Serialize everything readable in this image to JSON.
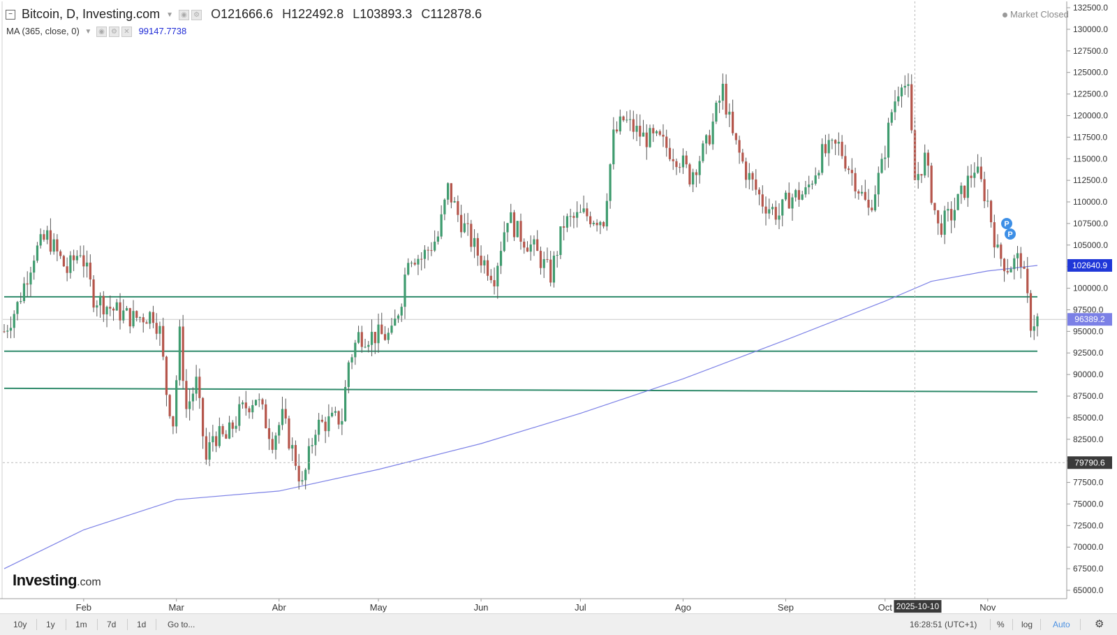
{
  "header": {
    "title": "Bitcoin, D, Investing.com",
    "open_label": "O",
    "open": "121666.6",
    "high_label": "H",
    "high": "122492.8",
    "low_label": "L",
    "low": "103893.3",
    "close_label": "C",
    "close": "112878.6"
  },
  "indicator": {
    "label": "MA (365, close, 0)",
    "value": "99147.7738"
  },
  "status": {
    "market": "Market Closed"
  },
  "logo": {
    "name": "Investing",
    "domain": ".com"
  },
  "crosshair": {
    "date_label": "2025-10-10",
    "price_label": "79790.6"
  },
  "price_tags": {
    "ma": "102640.9",
    "last": "96389.2",
    "crosshair": "79790.6"
  },
  "markers": [
    "P",
    "P"
  ],
  "bottom_bar": {
    "ranges": [
      "10y",
      "1y",
      "1m",
      "7d",
      "1d"
    ],
    "goto": "Go to...",
    "clock": "16:28:51 (UTC+1)",
    "percent": "%",
    "log": "log",
    "auto": "Auto"
  },
  "colors": {
    "up": "#3e9b6e",
    "down": "#b5554b",
    "ma_line": "#7b80e6",
    "support_line": "#2e8a6a",
    "ma_tag": "#1f37d8",
    "last_tag": "#7b80e6",
    "cross_tag": "#3a3a3a"
  },
  "chart_data": {
    "type": "candlestick",
    "y_axis": {
      "min": 65000,
      "max": 132500,
      "step": 2500,
      "tick_labels": [
        "65000.0",
        "67500.0",
        "70000.0",
        "72500.0",
        "75000.0",
        "77500.0",
        "80000.0",
        "82500.0",
        "85000.0",
        "87500.0",
        "90000.0",
        "92500.0",
        "95000.0",
        "97500.0",
        "100000.0",
        "102500.0",
        "105000.0",
        "107500.0",
        "110000.0",
        "112500.0",
        "115000.0",
        "117500.0",
        "120000.0",
        "122500.0",
        "125000.0",
        "127500.0",
        "130000.0",
        "132500.0"
      ]
    },
    "x_axis": {
      "start_date": "2025-01-08",
      "end_date": "2025-11-16",
      "month_labels": [
        {
          "label": "Feb",
          "date": "2025-02-01"
        },
        {
          "label": "Mar",
          "date": "2025-03-01"
        },
        {
          "label": "Abr",
          "date": "2025-04-01"
        },
        {
          "label": "May",
          "date": "2025-05-01"
        },
        {
          "label": "Jun",
          "date": "2025-06-01"
        },
        {
          "label": "Jul",
          "date": "2025-07-01"
        },
        {
          "label": "Ago",
          "date": "2025-08-01"
        },
        {
          "label": "Sep",
          "date": "2025-09-01"
        },
        {
          "label": "Oct",
          "date": "2025-10-01"
        },
        {
          "label": "Nov",
          "date": "2025-11-01"
        }
      ]
    },
    "price_path": [
      [
        "2025-01-08",
        95000
      ],
      [
        "2025-01-12",
        98000
      ],
      [
        "2025-01-17",
        104000
      ],
      [
        "2025-01-21",
        106000
      ],
      [
        "2025-01-27",
        102000
      ],
      [
        "2025-01-31",
        104500
      ],
      [
        "2025-02-04",
        99000
      ],
      [
        "2025-02-10",
        97500
      ],
      [
        "2025-02-16",
        96500
      ],
      [
        "2025-02-22",
        97000
      ],
      [
        "2025-02-24",
        95000
      ],
      [
        "2025-02-26",
        88000
      ],
      [
        "2025-02-28",
        84500
      ],
      [
        "2025-03-02",
        94500
      ],
      [
        "2025-03-04",
        86000
      ],
      [
        "2025-03-07",
        89000
      ],
      [
        "2025-03-10",
        80000
      ],
      [
        "2025-03-12",
        83000
      ],
      [
        "2025-03-16",
        82500
      ],
      [
        "2025-03-20",
        85500
      ],
      [
        "2025-03-25",
        87500
      ],
      [
        "2025-03-30",
        82500
      ],
      [
        "2025-04-02",
        85000
      ],
      [
        "2025-04-06",
        80000
      ],
      [
        "2025-04-08",
        77000
      ],
      [
        "2025-04-12",
        84000
      ],
      [
        "2025-04-16",
        84500
      ],
      [
        "2025-04-20",
        85000
      ],
      [
        "2025-04-22",
        91500
      ],
      [
        "2025-04-25",
        94500
      ],
      [
        "2025-04-30",
        94500
      ],
      [
        "2025-05-05",
        94500
      ],
      [
        "2025-05-08",
        99000
      ],
      [
        "2025-05-10",
        104000
      ],
      [
        "2025-05-14",
        103500
      ],
      [
        "2025-05-19",
        106000
      ],
      [
        "2025-05-22",
        111500
      ],
      [
        "2025-05-25",
        108500
      ],
      [
        "2025-05-31",
        104000
      ],
      [
        "2025-06-05",
        101500
      ],
      [
        "2025-06-09",
        108500
      ],
      [
        "2025-06-12",
        106500
      ],
      [
        "2025-06-17",
        104500
      ],
      [
        "2025-06-22",
        101500
      ],
      [
        "2025-06-26",
        107500
      ],
      [
        "2025-07-02",
        108500
      ],
      [
        "2025-07-08",
        108000
      ],
      [
        "2025-07-11",
        117500
      ],
      [
        "2025-07-14",
        119500
      ],
      [
        "2025-07-20",
        117500
      ],
      [
        "2025-07-25",
        117000
      ],
      [
        "2025-07-31",
        115000
      ],
      [
        "2025-08-03",
        113000
      ],
      [
        "2025-08-08",
        116500
      ],
      [
        "2025-08-13",
        123000
      ],
      [
        "2025-08-16",
        117500
      ],
      [
        "2025-08-20",
        113500
      ],
      [
        "2025-08-25",
        110000
      ],
      [
        "2025-08-30",
        108500
      ],
      [
        "2025-09-02",
        110500
      ],
      [
        "2025-09-07",
        111000
      ],
      [
        "2025-09-12",
        115500
      ],
      [
        "2025-09-17",
        116500
      ],
      [
        "2025-09-22",
        112500
      ],
      [
        "2025-09-26",
        109000
      ],
      [
        "2025-09-30",
        114000
      ],
      [
        "2025-10-03",
        120500
      ],
      [
        "2025-10-06",
        124500
      ],
      [
        "2025-10-08",
        122500
      ],
      [
        "2025-10-10",
        112500
      ],
      [
        "2025-10-13",
        115000
      ],
      [
        "2025-10-17",
        107000
      ],
      [
        "2025-10-21",
        108500
      ],
      [
        "2025-10-25",
        111500
      ],
      [
        "2025-10-28",
        114000
      ],
      [
        "2025-11-01",
        110000
      ],
      [
        "2025-11-04",
        104000
      ],
      [
        "2025-11-07",
        102500
      ],
      [
        "2025-11-11",
        103500
      ],
      [
        "2025-11-14",
        96000
      ],
      [
        "2025-11-16",
        96400
      ]
    ],
    "moving_average": {
      "name": "MA (365, close, 0)",
      "points": [
        [
          "2025-01-08",
          67500
        ],
        [
          "2025-02-01",
          72000
        ],
        [
          "2025-03-01",
          75500
        ],
        [
          "2025-04-01",
          76500
        ],
        [
          "2025-05-01",
          79000
        ],
        [
          "2025-06-01",
          82000
        ],
        [
          "2025-07-01",
          85500
        ],
        [
          "2025-08-01",
          89500
        ],
        [
          "2025-09-01",
          94000
        ],
        [
          "2025-10-01",
          98500
        ],
        [
          "2025-10-15",
          100800
        ],
        [
          "2025-11-01",
          102000
        ],
        [
          "2025-11-16",
          102640
        ]
      ]
    },
    "horizontal_lines": [
      {
        "start": [
          "2025-01-08",
          99000
        ],
        "end": [
          "2025-11-16",
          99000
        ]
      },
      {
        "start": [
          "2025-01-08",
          92700
        ],
        "end": [
          "2025-11-16",
          92700
        ]
      },
      {
        "start": [
          "2025-01-08",
          88400
        ],
        "end": [
          "2025-11-16",
          88000
        ]
      }
    ],
    "last_price": 96389.2,
    "crosshair": {
      "date": "2025-10-10",
      "price": 79790.6
    }
  }
}
